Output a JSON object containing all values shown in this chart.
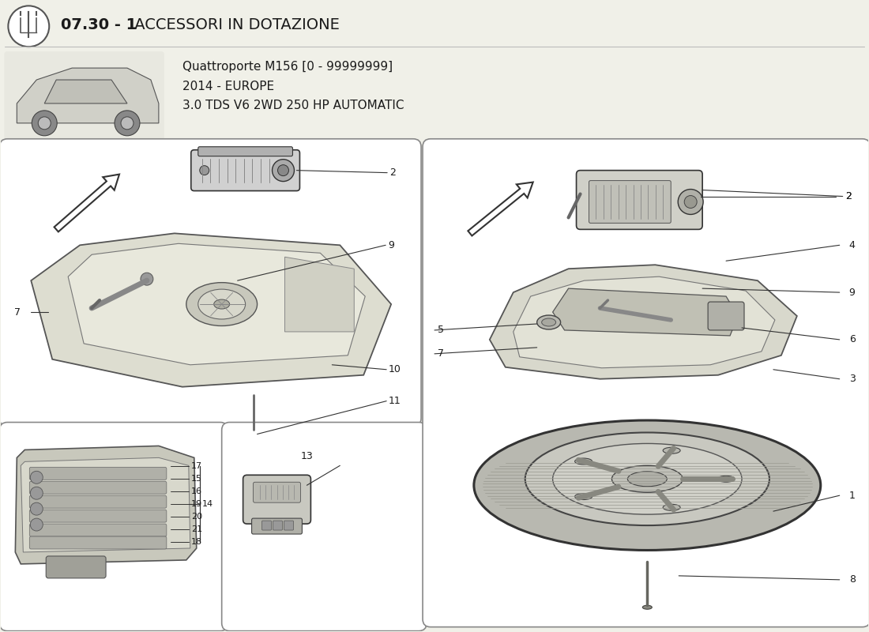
{
  "bg_color": "#f0f0e8",
  "panel_bg": "#ffffff",
  "text_color": "#1a1a1a",
  "title_bold": "07.30 - 1",
  "title_rest": " ACCESSORI IN DOTAZIONE",
  "sub1": "Quattroporte M156 [0 - 99999999]",
  "sub2": "2014 - EUROPE",
  "sub3": "3.0 TDS V6 2WD 250 HP AUTOMATIC",
  "border_color": "#888888",
  "dark": "#333333",
  "mid": "#888888",
  "light": "#cccccc",
  "line_color": "#444444",
  "part_gray": "#c0c0c0",
  "part_light": "#e0e0d8",
  "part_dark": "#888888",
  "tire_color": "#b0b0a8"
}
